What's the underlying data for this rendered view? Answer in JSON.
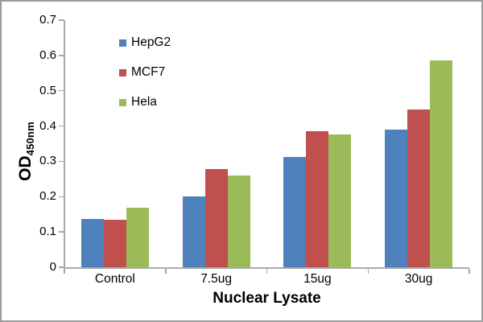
{
  "chart_data": {
    "type": "bar",
    "title": "",
    "categories": [
      "Control",
      "7.5ug",
      "15ug",
      "30ug"
    ],
    "series": [
      {
        "name": "HepG2",
        "color": "#4F81BD",
        "values": [
          0.137,
          0.2,
          0.312,
          0.39
        ]
      },
      {
        "name": "MCF7",
        "color": "#C0504D",
        "values": [
          0.135,
          0.278,
          0.386,
          0.447
        ]
      },
      {
        "name": "Hela",
        "color": "#9BBB59",
        "values": [
          0.168,
          0.26,
          0.376,
          0.585
        ]
      }
    ],
    "xlabel": "Nuclear Lysate",
    "ylabel_main": "OD",
    "ylabel_sub": "450nm",
    "ylim": [
      0,
      0.7
    ],
    "ytick_step": 0.1,
    "ytick_labels": [
      "0",
      "0.1",
      "0.2",
      "0.3",
      "0.4",
      "0.5",
      "0.6",
      "0.7"
    ],
    "grid": false,
    "legend_position": "upper-left-inside",
    "axis_color": "#A6A6A6",
    "border_color": "#9B9B9B",
    "background_color": "#FFFFFF"
  }
}
